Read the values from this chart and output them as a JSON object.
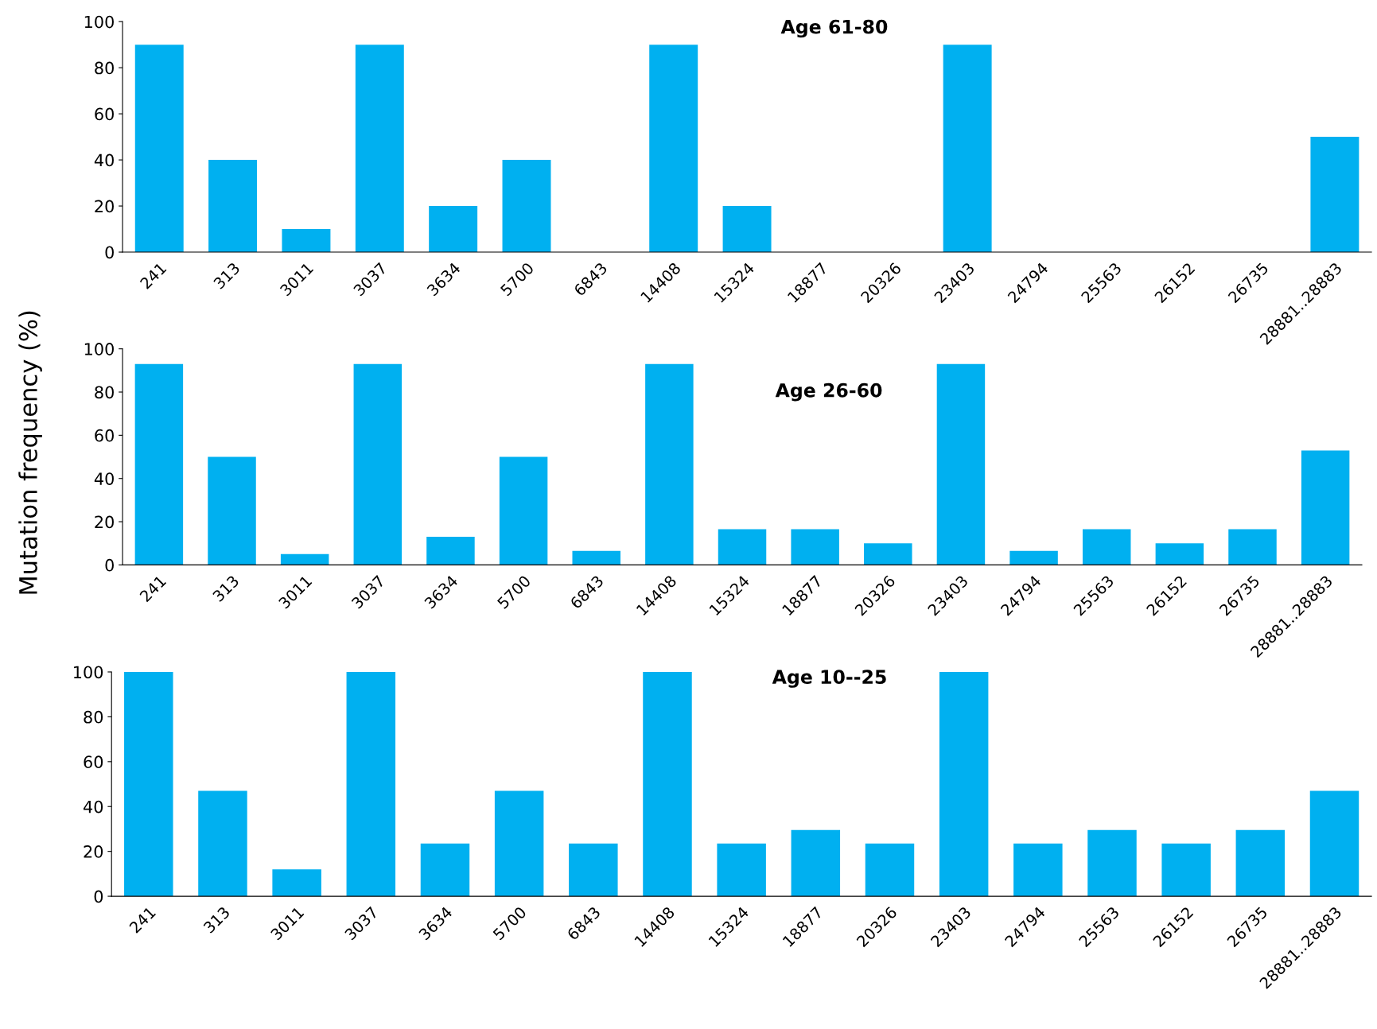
{
  "chart_data": [
    {
      "type": "bar",
      "title": "Age 61-80",
      "categories": [
        "241",
        "313",
        "3011",
        "3037",
        "3634",
        "5700",
        "6843",
        "14408",
        "15324",
        "18877",
        "20326",
        "23403",
        "24794",
        "25563",
        "26152",
        "26735",
        "28881..28883"
      ],
      "values": [
        90,
        40,
        10,
        90,
        20,
        40,
        0,
        90,
        20,
        0,
        0,
        90,
        0,
        0,
        0,
        0,
        50
      ],
      "color": "#00b0f0",
      "ylim": [
        0,
        100
      ],
      "yticks": [
        0,
        20,
        40,
        60,
        80,
        100
      ],
      "grid": false,
      "legend": false
    },
    {
      "type": "bar",
      "title": "Age 26-60",
      "ylabel": "Mutation frequency (%)",
      "categories": [
        "241",
        "313",
        "3011",
        "3037",
        "3634",
        "5700",
        "6843",
        "14408",
        "15324",
        "18877",
        "20326",
        "23403",
        "24794",
        "25563",
        "26152",
        "26735",
        "28881..28883"
      ],
      "values": [
        93,
        50,
        5,
        93,
        13,
        50,
        6.5,
        93,
        16.5,
        16.5,
        10,
        93,
        6.5,
        16.5,
        10,
        16.5,
        53
      ],
      "color": "#00b0f0",
      "ylim": [
        0,
        100
      ],
      "yticks": [
        0,
        20,
        40,
        60,
        80,
        100
      ],
      "grid": false,
      "legend": false
    },
    {
      "type": "bar",
      "title": "Age 10--25",
      "categories": [
        "241",
        "313",
        "3011",
        "3037",
        "3634",
        "5700",
        "6843",
        "14408",
        "15324",
        "18877",
        "20326",
        "23403",
        "24794",
        "25563",
        "26152",
        "26735",
        "28881..28883"
      ],
      "values": [
        100,
        47,
        12,
        100,
        23.5,
        47,
        23.5,
        100,
        23.5,
        29.5,
        23.5,
        100,
        23.5,
        29.5,
        23.5,
        29.5,
        47
      ],
      "color": "#00b0f0",
      "ylim": [
        0,
        100
      ],
      "yticks": [
        0,
        20,
        40,
        60,
        80,
        100
      ],
      "grid": false,
      "legend": false
    }
  ]
}
